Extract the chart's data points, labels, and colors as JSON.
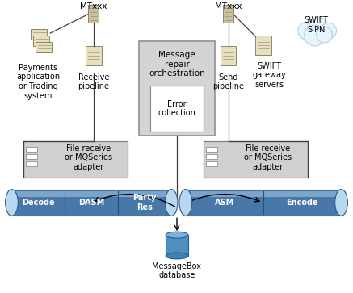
{
  "bg_color": "#ffffff",
  "fig_w": 4.37,
  "fig_h": 3.63,
  "elements": {
    "mtxxx_left_label": "MTxxx",
    "mtxxx_right_label": "MTxxx",
    "payments_label": "Payments\napplication\nor Trading\nsystem",
    "receive_pipeline_label": "Receive\npipeline",
    "send_pipeline_label": "Send\npipeline",
    "swift_gateway_label": "SWIFT\ngateway\nservers",
    "swift_sipn_label": "SWIFT\nSIPN",
    "message_repair_label": "Message\nrepair\norchestration",
    "error_collection_label": "Error\ncollection",
    "file_receive_left_label": "File receive\nor MQSeries\nadapter",
    "file_receive_right_label": "File receive\nor MQSeries\nadapter",
    "decode_label": "Decode",
    "dasm_label": "DASM",
    "party_res_label": "Party\nRes",
    "asm_label": "ASM",
    "encode_label": "Encode",
    "messagebox_label": "MessageBox\ndatabase",
    "gray_fill": "#d4d4d4",
    "cloud_fill": "#e8f4fc",
    "cloud_edge": "#a0c8e0",
    "adapter_box_fill": "#d0d0d0",
    "text_color": "#000000",
    "font_size": 7,
    "small_font": 6.5,
    "line_color": "#404040",
    "pipe_body": "#4878a8",
    "pipe_edge": "#305888",
    "pipe_cap": "#b8d8f0",
    "pipe_hi": "#90b8d8",
    "pipe_div": "#205078",
    "db_body": "#5090c0",
    "db_top": "#80b0d8",
    "db_bot": "#4080b0",
    "db_edge": "#2060a0",
    "server_fill": "#e8dfc0",
    "server_edge": "#888860",
    "switch_fill": "#c8c0a0"
  }
}
